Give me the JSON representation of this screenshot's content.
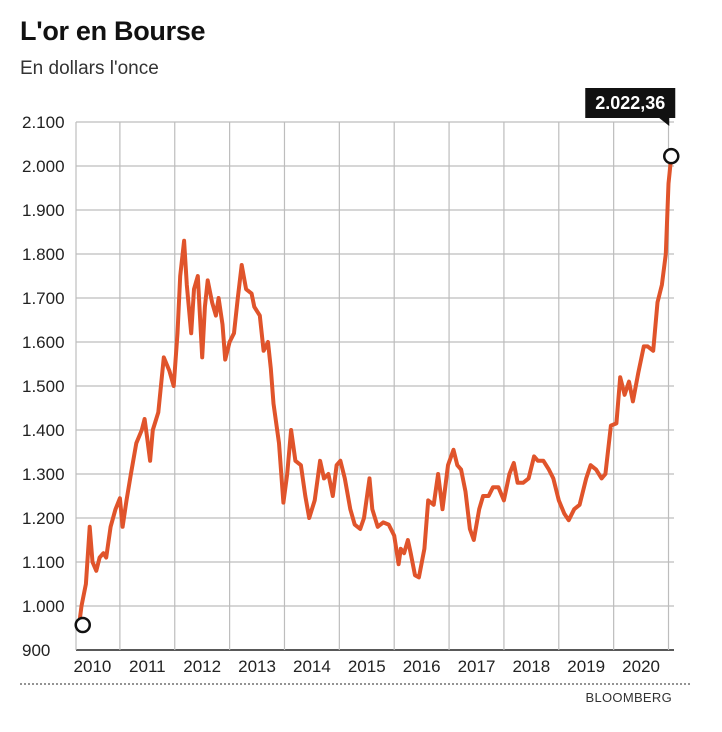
{
  "chart_data": {
    "type": "line",
    "title": "L'or en Bourse",
    "subtitle": "En dollars l'once",
    "source": "BLOOMBERG",
    "xlabel": "",
    "ylabel": "",
    "xlim": [
      2009.7,
      2020.6
    ],
    "ylim": [
      900,
      2100
    ],
    "y_ticks": [
      900,
      1000,
      1100,
      1200,
      1300,
      1400,
      1500,
      1600,
      1700,
      1800,
      1900,
      2000,
      2100
    ],
    "y_tick_labels": [
      "900",
      "1.000",
      "1.100",
      "1.200",
      "1.300",
      "1.400",
      "1.500",
      "1.600",
      "1.700",
      "1.800",
      "1.900",
      "2.000",
      "2.100"
    ],
    "x_ticks": [
      2010,
      2011,
      2012,
      2013,
      2014,
      2015,
      2016,
      2017,
      2018,
      2019,
      2020
    ],
    "x_tick_labels": [
      "2010",
      "2011",
      "2012",
      "2013",
      "2014",
      "2015",
      "2016",
      "2017",
      "2018",
      "2019",
      "2020"
    ],
    "grid": true,
    "line_color": "#e0542b",
    "series": [
      {
        "name": "",
        "points": [
          [
            2009.75,
            950
          ],
          [
            2009.8,
            1000
          ],
          [
            2009.88,
            1050
          ],
          [
            2009.95,
            1180
          ],
          [
            2010.0,
            1100
          ],
          [
            2010.07,
            1080
          ],
          [
            2010.13,
            1110
          ],
          [
            2010.2,
            1120
          ],
          [
            2010.25,
            1110
          ],
          [
            2010.33,
            1180
          ],
          [
            2010.42,
            1220
          ],
          [
            2010.5,
            1245
          ],
          [
            2010.55,
            1180
          ],
          [
            2010.62,
            1240
          ],
          [
            2010.7,
            1300
          ],
          [
            2010.8,
            1370
          ],
          [
            2010.9,
            1400
          ],
          [
            2010.95,
            1425
          ],
          [
            2011.0,
            1380
          ],
          [
            2011.05,
            1330
          ],
          [
            2011.1,
            1400
          ],
          [
            2011.2,
            1440
          ],
          [
            2011.3,
            1565
          ],
          [
            2011.4,
            1535
          ],
          [
            2011.48,
            1500
          ],
          [
            2011.55,
            1620
          ],
          [
            2011.6,
            1750
          ],
          [
            2011.67,
            1830
          ],
          [
            2011.72,
            1730
          ],
          [
            2011.8,
            1620
          ],
          [
            2011.85,
            1720
          ],
          [
            2011.92,
            1750
          ],
          [
            2012.0,
            1565
          ],
          [
            2012.05,
            1680
          ],
          [
            2012.1,
            1740
          ],
          [
            2012.18,
            1690
          ],
          [
            2012.25,
            1660
          ],
          [
            2012.3,
            1700
          ],
          [
            2012.37,
            1640
          ],
          [
            2012.42,
            1560
          ],
          [
            2012.5,
            1600
          ],
          [
            2012.58,
            1620
          ],
          [
            2012.65,
            1700
          ],
          [
            2012.72,
            1775
          ],
          [
            2012.8,
            1720
          ],
          [
            2012.9,
            1710
          ],
          [
            2012.95,
            1680
          ],
          [
            2013.05,
            1660
          ],
          [
            2013.12,
            1580
          ],
          [
            2013.2,
            1600
          ],
          [
            2013.25,
            1540
          ],
          [
            2013.3,
            1460
          ],
          [
            2013.4,
            1370
          ],
          [
            2013.48,
            1235
          ],
          [
            2013.55,
            1300
          ],
          [
            2013.62,
            1400
          ],
          [
            2013.7,
            1330
          ],
          [
            2013.8,
            1320
          ],
          [
            2013.88,
            1250
          ],
          [
            2013.95,
            1200
          ],
          [
            2014.05,
            1240
          ],
          [
            2014.15,
            1330
          ],
          [
            2014.22,
            1290
          ],
          [
            2014.3,
            1300
          ],
          [
            2014.38,
            1250
          ],
          [
            2014.45,
            1320
          ],
          [
            2014.52,
            1330
          ],
          [
            2014.6,
            1290
          ],
          [
            2014.7,
            1220
          ],
          [
            2014.78,
            1185
          ],
          [
            2014.88,
            1175
          ],
          [
            2014.95,
            1200
          ],
          [
            2015.05,
            1290
          ],
          [
            2015.1,
            1220
          ],
          [
            2015.2,
            1180
          ],
          [
            2015.3,
            1190
          ],
          [
            2015.4,
            1185
          ],
          [
            2015.5,
            1160
          ],
          [
            2015.58,
            1095
          ],
          [
            2015.62,
            1130
          ],
          [
            2015.68,
            1120
          ],
          [
            2015.75,
            1150
          ],
          [
            2015.8,
            1120
          ],
          [
            2015.88,
            1070
          ],
          [
            2015.95,
            1065
          ],
          [
            2016.05,
            1130
          ],
          [
            2016.12,
            1240
          ],
          [
            2016.22,
            1230
          ],
          [
            2016.3,
            1300
          ],
          [
            2016.38,
            1220
          ],
          [
            2016.48,
            1320
          ],
          [
            2016.58,
            1355
          ],
          [
            2016.65,
            1320
          ],
          [
            2016.72,
            1310
          ],
          [
            2016.8,
            1260
          ],
          [
            2016.88,
            1175
          ],
          [
            2016.95,
            1150
          ],
          [
            2017.05,
            1220
          ],
          [
            2017.12,
            1250
          ],
          [
            2017.22,
            1250
          ],
          [
            2017.3,
            1270
          ],
          [
            2017.4,
            1270
          ],
          [
            2017.5,
            1240
          ],
          [
            2017.6,
            1300
          ],
          [
            2017.68,
            1325
          ],
          [
            2017.75,
            1280
          ],
          [
            2017.85,
            1280
          ],
          [
            2017.95,
            1290
          ],
          [
            2018.05,
            1340
          ],
          [
            2018.12,
            1330
          ],
          [
            2018.22,
            1330
          ],
          [
            2018.32,
            1310
          ],
          [
            2018.4,
            1290
          ],
          [
            2018.5,
            1240
          ],
          [
            2018.6,
            1210
          ],
          [
            2018.68,
            1195
          ],
          [
            2018.78,
            1220
          ],
          [
            2018.88,
            1230
          ],
          [
            2019.0,
            1290
          ],
          [
            2019.08,
            1320
          ],
          [
            2019.18,
            1310
          ],
          [
            2019.28,
            1290
          ],
          [
            2019.35,
            1300
          ],
          [
            2019.45,
            1410
          ],
          [
            2019.55,
            1415
          ],
          [
            2019.62,
            1520
          ],
          [
            2019.7,
            1480
          ],
          [
            2019.78,
            1510
          ],
          [
            2019.85,
            1465
          ],
          [
            2019.95,
            1530
          ],
          [
            2020.05,
            1590
          ],
          [
            2020.12,
            1590
          ],
          [
            2020.22,
            1580
          ],
          [
            2020.3,
            1690
          ],
          [
            2020.38,
            1730
          ],
          [
            2020.45,
            1800
          ],
          [
            2020.5,
            1960
          ],
          [
            2020.55,
            2022.36
          ]
        ],
        "start_value": 950,
        "end_value": 2022.36
      }
    ],
    "annotations": [
      {
        "label": "2.022,36",
        "x": 2020.55,
        "y": 2022.36
      }
    ]
  }
}
